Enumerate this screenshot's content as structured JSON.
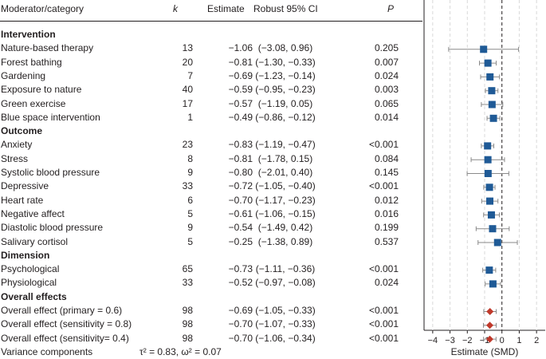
{
  "table": {
    "headers": {
      "category": "Moderator/category",
      "k": "k",
      "estimate": "Estimate",
      "ci": "Robust 95% CI",
      "p": "P"
    },
    "rows": [
      {
        "type": "section",
        "label": "Intervention"
      },
      {
        "type": "row",
        "label": "Nature-based therapy",
        "k": "13",
        "estimate": "−1.06",
        "ci": "(−3.08, 0.96)",
        "p": "0.205"
      },
      {
        "type": "row",
        "label": "Forest bathing",
        "k": "20",
        "estimate": "−0.81",
        "ci": "(−1.30, −0.33)",
        "p": "0.007"
      },
      {
        "type": "row",
        "label": "Gardening",
        "k": "7",
        "estimate": "−0.69",
        "ci": "(−1.23, −0.14)",
        "p": "0.024"
      },
      {
        "type": "row",
        "label": "Exposure to nature",
        "k": "40",
        "estimate": "−0.59",
        "ci": "(−0.95, −0.23)",
        "p": "0.003"
      },
      {
        "type": "row",
        "label": "Green exercise",
        "k": "17",
        "estimate": "−0.57",
        "ci": "(−1.19, 0.05)",
        "p": "0.065"
      },
      {
        "type": "row",
        "label": "Blue space intervention",
        "k": "1",
        "estimate": "−0.49",
        "ci": "(−0.86, −0.12)",
        "p": "0.014"
      },
      {
        "type": "section",
        "label": "Outcome"
      },
      {
        "type": "row",
        "label": "Anxiety",
        "k": "23",
        "estimate": "−0.83",
        "ci": "(−1.19, −0.47)",
        "p": "<0.001"
      },
      {
        "type": "row",
        "label": "Stress",
        "k": "8",
        "estimate": "−0.81",
        "ci": "(−1.78, 0.15)",
        "p": "0.084"
      },
      {
        "type": "row",
        "label": "Systolic blood pressure",
        "k": "9",
        "estimate": "−0.80",
        "ci": "(−2.01, 0.40)",
        "p": "0.145"
      },
      {
        "type": "row",
        "label": "Depressive",
        "k": "33",
        "estimate": "−0.72",
        "ci": "(−1.05, −0.40)",
        "p": "<0.001"
      },
      {
        "type": "row",
        "label": "Heart rate",
        "k": "6",
        "estimate": "−0.70",
        "ci": "(−1.17, −0.23)",
        "p": "0.012"
      },
      {
        "type": "row",
        "label": "Negative affect",
        "k": "5",
        "estimate": "−0.61",
        "ci": "(−1.06, −0.15)",
        "p": "0.016"
      },
      {
        "type": "row",
        "label": "Diastolic blood pressure",
        "k": "9",
        "estimate": "−0.54",
        "ci": "(−1.49, 0.42)",
        "p": "0.199"
      },
      {
        "type": "row",
        "label": "Salivary cortisol",
        "k": "5",
        "estimate": "−0.25",
        "ci": "(−1.38, 0.89)",
        "p": "0.537"
      },
      {
        "type": "section",
        "label": "Dimension"
      },
      {
        "type": "row",
        "label": "Psychological",
        "k": "65",
        "estimate": "−0.73",
        "ci": "(−1.11, −0.36)",
        "p": "<0.001"
      },
      {
        "type": "row",
        "label": "Physiological",
        "k": "33",
        "estimate": "−0.52",
        "ci": "(−0.97, −0.08)",
        "p": "0.024"
      },
      {
        "type": "section",
        "label": "Overall effects"
      },
      {
        "type": "row",
        "label": "Overall effect (primary = 0.6)",
        "k": "98",
        "estimate": "−0.69",
        "ci": "(−1.05, −0.33)",
        "p": "<0.001"
      },
      {
        "type": "row",
        "label": "Overall effect (sensitivity = 0.8)",
        "k": "98",
        "estimate": "−0.70",
        "ci": "(−1.07, −0.33)",
        "p": "<0.001"
      },
      {
        "type": "row",
        "label": "Overall effect (sensitivity= 0.4)",
        "k": "98",
        "estimate": "−0.70",
        "ci": "(−1.06, −0.34)",
        "p": "<0.001"
      }
    ],
    "footer_label": "Variance components",
    "footer_value": "τ² = 0.83, ω² = 0.07"
  },
  "chart_data": {
    "type": "scatter",
    "subtype": "forest",
    "xlabel": "Estimate (SMD)",
    "xlim": [
      -4.5,
      2.5
    ],
    "xticks": [
      -4,
      -3,
      -2,
      -1,
      0,
      1,
      2
    ],
    "tick_labels": [
      "−4",
      "−3",
      "−2",
      "−1",
      "0",
      "1",
      "2"
    ],
    "reference_line": 0,
    "grid": "vertical dashed",
    "colors": {
      "square": "#1f5a96",
      "diamond": "#c0392b",
      "whisker": "#8a8a8a",
      "grid": "#d9d9d9"
    },
    "points": [
      {
        "category": "Nature-based therapy",
        "estimate": -1.06,
        "lower": -3.08,
        "upper": 0.96,
        "marker": "square"
      },
      {
        "category": "Forest bathing",
        "estimate": -0.81,
        "lower": -1.3,
        "upper": -0.33,
        "marker": "square"
      },
      {
        "category": "Gardening",
        "estimate": -0.69,
        "lower": -1.23,
        "upper": -0.14,
        "marker": "square"
      },
      {
        "category": "Exposure to nature",
        "estimate": -0.59,
        "lower": -0.95,
        "upper": -0.23,
        "marker": "square"
      },
      {
        "category": "Green exercise",
        "estimate": -0.57,
        "lower": -1.19,
        "upper": 0.05,
        "marker": "square"
      },
      {
        "category": "Blue space intervention",
        "estimate": -0.49,
        "lower": -0.86,
        "upper": -0.12,
        "marker": "square"
      },
      {
        "category": "Anxiety",
        "estimate": -0.83,
        "lower": -1.19,
        "upper": -0.47,
        "marker": "square"
      },
      {
        "category": "Stress",
        "estimate": -0.81,
        "lower": -1.78,
        "upper": 0.15,
        "marker": "square"
      },
      {
        "category": "Systolic blood pressure",
        "estimate": -0.8,
        "lower": -2.01,
        "upper": 0.4,
        "marker": "square"
      },
      {
        "category": "Depressive",
        "estimate": -0.72,
        "lower": -1.05,
        "upper": -0.4,
        "marker": "square"
      },
      {
        "category": "Heart rate",
        "estimate": -0.7,
        "lower": -1.17,
        "upper": -0.23,
        "marker": "square"
      },
      {
        "category": "Negative affect",
        "estimate": -0.61,
        "lower": -1.06,
        "upper": -0.15,
        "marker": "square"
      },
      {
        "category": "Diastolic blood pressure",
        "estimate": -0.54,
        "lower": -1.49,
        "upper": 0.42,
        "marker": "square"
      },
      {
        "category": "Salivary cortisol",
        "estimate": -0.25,
        "lower": -1.38,
        "upper": 0.89,
        "marker": "square"
      },
      {
        "category": "Psychological",
        "estimate": -0.73,
        "lower": -1.11,
        "upper": -0.36,
        "marker": "square"
      },
      {
        "category": "Physiological",
        "estimate": -0.52,
        "lower": -0.97,
        "upper": -0.08,
        "marker": "square"
      },
      {
        "category": "Overall effect (primary = 0.6)",
        "estimate": -0.69,
        "lower": -1.05,
        "upper": -0.33,
        "marker": "diamond"
      },
      {
        "category": "Overall effect (sensitivity = 0.8)",
        "estimate": -0.7,
        "lower": -1.07,
        "upper": -0.33,
        "marker": "diamond"
      },
      {
        "category": "Overall effect (sensitivity= 0.4)",
        "estimate": -0.7,
        "lower": -1.06,
        "upper": -0.34,
        "marker": "diamond"
      }
    ]
  }
}
